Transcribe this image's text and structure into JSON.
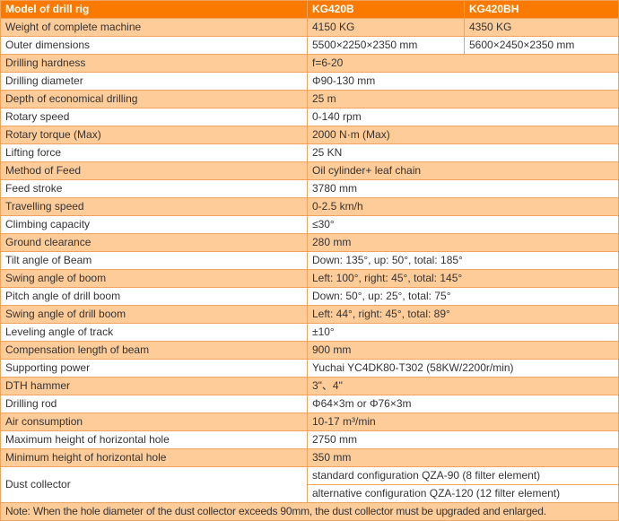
{
  "table": {
    "header": {
      "model_label": "Model of drill rig",
      "model_b": "KG420B",
      "model_bh": "KG420BH"
    },
    "rows": [
      {
        "label": "Weight of complete machine",
        "values": [
          "4150 KG",
          "4350 KG"
        ]
      },
      {
        "label": "Outer dimensions",
        "values": [
          "5500×2250×2350 mm",
          "5600×2450×2350 mm"
        ]
      },
      {
        "label": "Drilling hardness",
        "value": "f=6-20"
      },
      {
        "label": "Drilling diameter",
        "value": "Φ90-130 mm"
      },
      {
        "label": "Depth of economical drilling",
        "value": "25 m"
      },
      {
        "label": "Rotary speed",
        "value": "0-140 rpm"
      },
      {
        "label": "Rotary torque (Max)",
        "value": "2000 N·m (Max)"
      },
      {
        "label": "Lifting force",
        "value": "25 KN"
      },
      {
        "label": "Method of Feed",
        "value": "Oil cylinder+ leaf chain"
      },
      {
        "label": "Feed stroke",
        "value": "3780 mm"
      },
      {
        "label": "Travelling speed",
        "value": "0-2.5 km/h"
      },
      {
        "label": "Climbing capacity",
        "value": "≤30°"
      },
      {
        "label": "Ground clearance",
        "value": "280 mm"
      },
      {
        "label": "Tilt angle of Beam",
        "value": "Down: 135°, up: 50°, total: 185°"
      },
      {
        "label": "Swing angle of boom",
        "value": "Left: 100°, right: 45°, total: 145°"
      },
      {
        "label": "Pitch angle of drill boom",
        "value": "Down: 50°, up: 25°, total: 75°"
      },
      {
        "label": "Swing angle of drill boom",
        "value": "Left: 44°, right: 45°, total: 89°"
      },
      {
        "label": "Leveling angle of track",
        "value": "±10°"
      },
      {
        "label": "Compensation length of beam",
        "value": "900 mm"
      },
      {
        "label": "Supporting power",
        "value": "Yuchai YC4DK80-T302 (58KW/2200r/min)"
      },
      {
        "label": "DTH hammer",
        "value": "3\"、4\""
      },
      {
        "label": "Drilling rod",
        "value": "Φ64×3m or Φ76×3m"
      },
      {
        "label": "Air consumption",
        "value": "10-17 m³/min"
      },
      {
        "label": "Maximum height of horizontal hole",
        "value": "2750 mm"
      },
      {
        "label": "Minimum height of horizontal hole",
        "value": "350 mm"
      },
      {
        "label": "Dust collector",
        "stacked_values": [
          "standard configuration QZA-90 (8 filter element)",
          "alternative configuration QZA-120 (12 filter element)"
        ]
      }
    ],
    "note": "Note: When the hole diameter of the dust collector exceeds 90mm, the dust collector must be upgraded and enlarged."
  },
  "colors": {
    "header_bg": "#FA7A00",
    "row_shade_bg": "#FECC99",
    "grid_line": "#F1A35C",
    "header_text": "#FFFFFF",
    "body_text": "#333333"
  }
}
